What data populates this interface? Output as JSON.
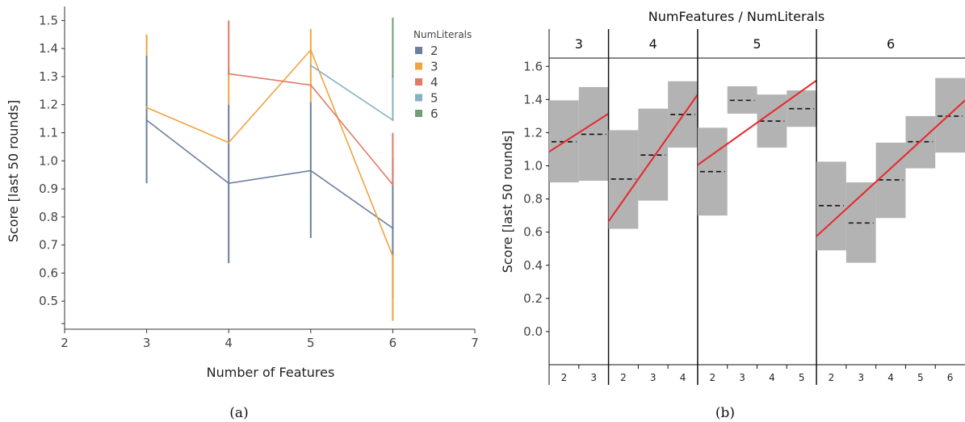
{
  "chart_data": [
    {
      "type": "line",
      "caption": "(a)",
      "xlabel": "Number of Features",
      "ylabel": "Score [last 50 rounds]",
      "xticks": [
        2,
        3,
        4,
        5,
        6,
        7
      ],
      "yticks": [
        0.5,
        0.6,
        0.7,
        0.8,
        0.9,
        1.0,
        1.1,
        1.2,
        1.3,
        1.4,
        1.5
      ],
      "xlim": [
        2,
        7
      ],
      "ylim": [
        0.4,
        1.55
      ],
      "legend_title": "NumLiterals",
      "legend_position": "top-right",
      "series": [
        {
          "name": "2",
          "color": "#6b7f9e",
          "points": [
            [
              3,
              1.145
            ],
            [
              4,
              0.92
            ],
            [
              5,
              0.965
            ],
            [
              6,
              0.76
            ]
          ],
          "err": [
            [
              3,
              0.92,
              1.375
            ],
            [
              4,
              0.635,
              1.2
            ],
            [
              5,
              0.725,
              1.21
            ],
            [
              6,
              0.51,
              1.01
            ]
          ]
        },
        {
          "name": "3",
          "color": "#f1a340",
          "points": [
            [
              3,
              1.19
            ],
            [
              4,
              1.065
            ],
            [
              5,
              1.395
            ],
            [
              6,
              0.66
            ]
          ],
          "err": [
            [
              3,
              1.375,
              1.45
            ],
            [
              4,
              1.2,
              1.33
            ],
            [
              5,
              1.21,
              1.47
            ],
            [
              6,
              0.43,
              0.66
            ]
          ]
        },
        {
          "name": "4",
          "color": "#e07b67",
          "points": [
            [
              4,
              1.31
            ],
            [
              5,
              1.27
            ],
            [
              6,
              0.915
            ]
          ],
          "err": [
            [
              4,
              1.31,
              1.5
            ],
            [
              6,
              0.915,
              1.1
            ]
          ]
        },
        {
          "name": "5",
          "color": "#86b2c3",
          "points": [
            [
              5,
              1.34
            ],
            [
              6,
              1.145
            ]
          ],
          "err": [
            [
              6,
              1.145,
              1.3
            ]
          ]
        },
        {
          "name": "6",
          "color": "#6f9e77",
          "points": [
            [
              6,
              1.3
            ]
          ],
          "err": [
            [
              6,
              1.3,
              1.51
            ]
          ]
        }
      ]
    },
    {
      "type": "bar",
      "caption": "(b)",
      "title": "NumFeatures / NumLiterals",
      "ylabel": "Score [last 50 rounds]",
      "yticks": [
        "0.0",
        "0.2",
        "0.4",
        "0.6",
        "0.8",
        "1.0",
        "1.2",
        "1.4",
        "1.6"
      ],
      "ylim": [
        -0.2,
        1.65
      ],
      "band_color": "#b3b3b3",
      "regression_color": "#e8262a",
      "panels": [
        {
          "features": "3",
          "groups": [
            {
              "literals": "2",
              "low": 0.9,
              "high": 1.395,
              "mean": 1.145
            },
            {
              "literals": "3",
              "low": 0.91,
              "high": 1.475,
              "mean": 1.19
            }
          ],
          "line": [
            1.085,
            1.315
          ]
        },
        {
          "features": "4",
          "groups": [
            {
              "literals": "2",
              "low": 0.62,
              "high": 1.215,
              "mean": 0.92
            },
            {
              "literals": "3",
              "low": 0.79,
              "high": 1.345,
              "mean": 1.065
            },
            {
              "literals": "4",
              "low": 1.11,
              "high": 1.51,
              "mean": 1.31
            }
          ],
          "line": [
            0.665,
            1.43
          ]
        },
        {
          "features": "5",
          "groups": [
            {
              "literals": "2",
              "low": 0.7,
              "high": 1.23,
              "mean": 0.965
            },
            {
              "literals": "3",
              "low": 1.315,
              "high": 1.48,
              "mean": 1.395
            },
            {
              "literals": "4",
              "low": 1.11,
              "high": 1.43,
              "mean": 1.27
            },
            {
              "literals": "5",
              "low": 1.235,
              "high": 1.455,
              "mean": 1.345
            }
          ],
          "line": [
            1.005,
            1.515
          ]
        },
        {
          "features": "6",
          "groups": [
            {
              "literals": "2",
              "low": 0.49,
              "high": 1.025,
              "mean": 0.76
            },
            {
              "literals": "3",
              "low": 0.415,
              "high": 0.9,
              "mean": 0.655
            },
            {
              "literals": "4",
              "low": 0.685,
              "high": 1.14,
              "mean": 0.915
            },
            {
              "literals": "5",
              "low": 0.985,
              "high": 1.3,
              "mean": 1.145
            },
            {
              "literals": "6",
              "low": 1.08,
              "high": 1.53,
              "mean": 1.3
            }
          ],
          "line": [
            0.575,
            1.395
          ]
        }
      ]
    }
  ]
}
